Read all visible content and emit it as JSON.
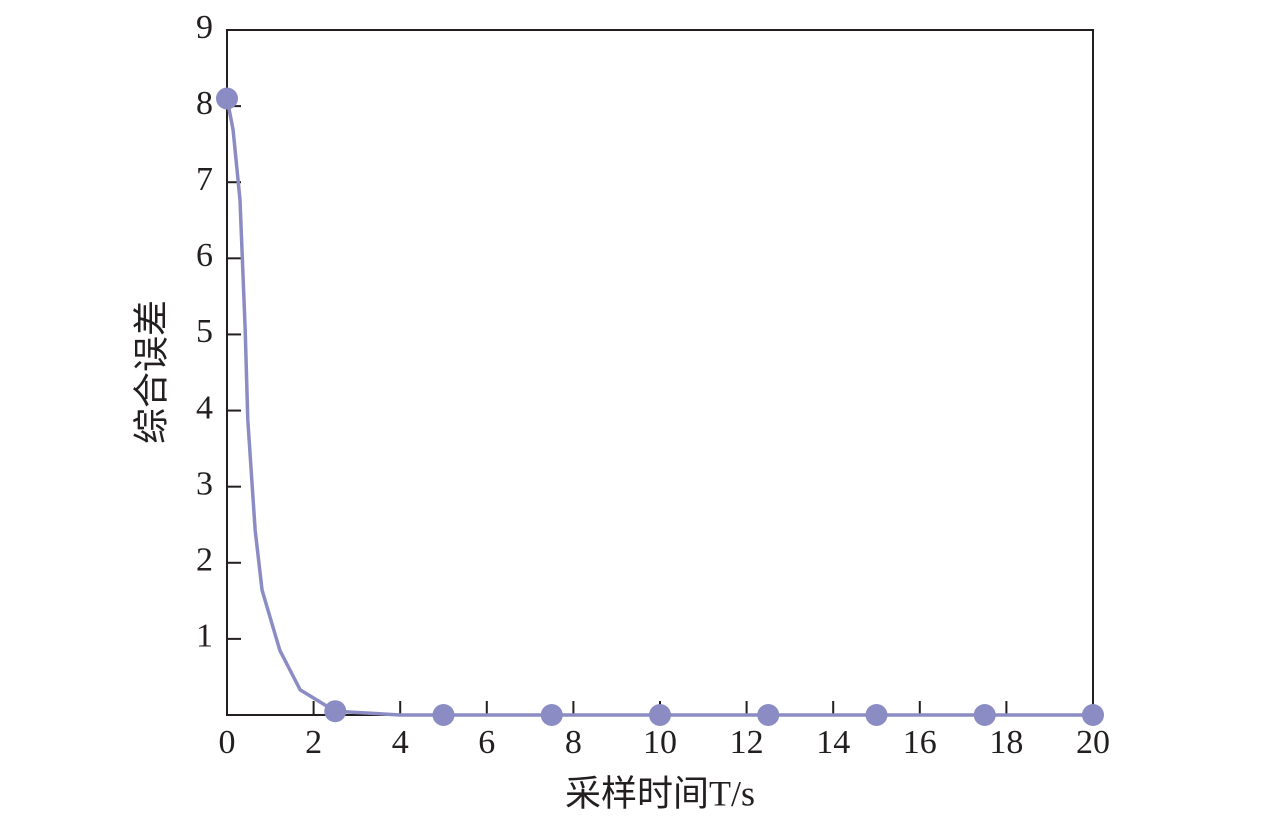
{
  "chart_data": {
    "type": "line",
    "xlabel": "采样时间T/s",
    "ylabel": "综合误差",
    "xlim": [
      0,
      20
    ],
    "xticks": [
      0,
      2,
      4,
      6,
      8,
      10,
      12,
      14,
      16,
      18,
      20
    ],
    "ylim": [
      0,
      9
    ],
    "yticks": [
      1,
      2,
      3,
      4,
      5,
      6,
      7,
      8,
      9
    ],
    "series": [
      {
        "color": "#8b8cc4",
        "marker": false,
        "x": [
          0,
          0.14,
          0.3,
          0.42,
          0.48,
          0.65,
          0.81,
          1.22,
          1.69,
          2.5,
          4,
          20
        ],
        "values": [
          8.1,
          7.69,
          6.77,
          5.06,
          3.88,
          2.43,
          1.64,
          0.85,
          0.33,
          0.05,
          0,
          0
        ]
      },
      {
        "color": "#8b8cc4",
        "marker": true,
        "x": [
          0,
          2.5,
          5,
          7.5,
          10,
          12.5,
          15,
          17.5,
          20
        ],
        "values": [
          8.1,
          0.05,
          0,
          0,
          0,
          0,
          0,
          0,
          0
        ]
      }
    ]
  }
}
